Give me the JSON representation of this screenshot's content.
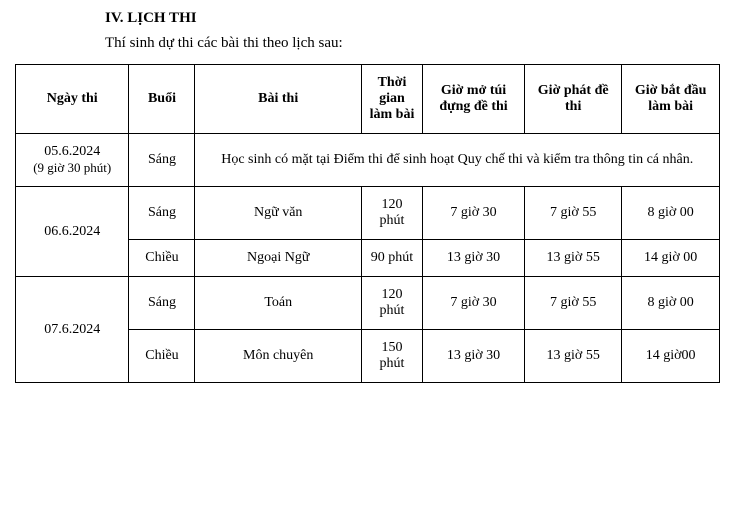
{
  "heading": "IV. LỊCH THI",
  "intro": "Thí sinh dự thi các bài thi theo lịch sau:",
  "headers": {
    "ngay": "Ngày thi",
    "buoi": "Buổi",
    "bai": "Bài thi",
    "thoi": "Thời gian làm bài",
    "mo": "Giờ mở túi đựng đề thi",
    "phat": "Giờ phát đề thi",
    "bat": "Giờ bắt đầu làm bài"
  },
  "rows": [
    {
      "ngay": "05.6.2024",
      "ngay_sub": "(9 giờ 30 phút)",
      "buoi": "Sáng",
      "merged_note": "Học sinh có mặt tại Điểm thi để sinh hoạt Quy chế thi và kiểm tra thông tin cá nhân."
    },
    {
      "ngay": "06.6.2024",
      "sessions": [
        {
          "buoi": "Sáng",
          "bai": "Ngữ văn",
          "thoi": "120 phút",
          "mo": "7 giờ 30",
          "phat": "7 giờ 55",
          "bat": "8 giờ 00"
        },
        {
          "buoi": "Chiều",
          "bai": "Ngoại Ngữ",
          "thoi": "90 phút",
          "mo": "13 giờ 30",
          "phat": "13 giờ 55",
          "bat": "14 giờ 00"
        }
      ]
    },
    {
      "ngay": "07.6.2024",
      "sessions": [
        {
          "buoi": "Sáng",
          "bai": "Toán",
          "thoi": "120 phút",
          "mo": "7 giờ 30",
          "phat": "7 giờ 55",
          "bat": "8 giờ 00"
        },
        {
          "buoi": "Chiều",
          "bai": "Môn chuyên",
          "thoi": "150 phút",
          "mo": "13 giờ 30",
          "phat": "13 giờ 55",
          "bat": "14 giờ00"
        }
      ]
    }
  ],
  "colors": {
    "text": "#000000",
    "background": "#ffffff",
    "border": "#000000"
  },
  "fonts": {
    "family": "Times New Roman",
    "body_size_pt": 11,
    "heading_weight": "bold"
  }
}
